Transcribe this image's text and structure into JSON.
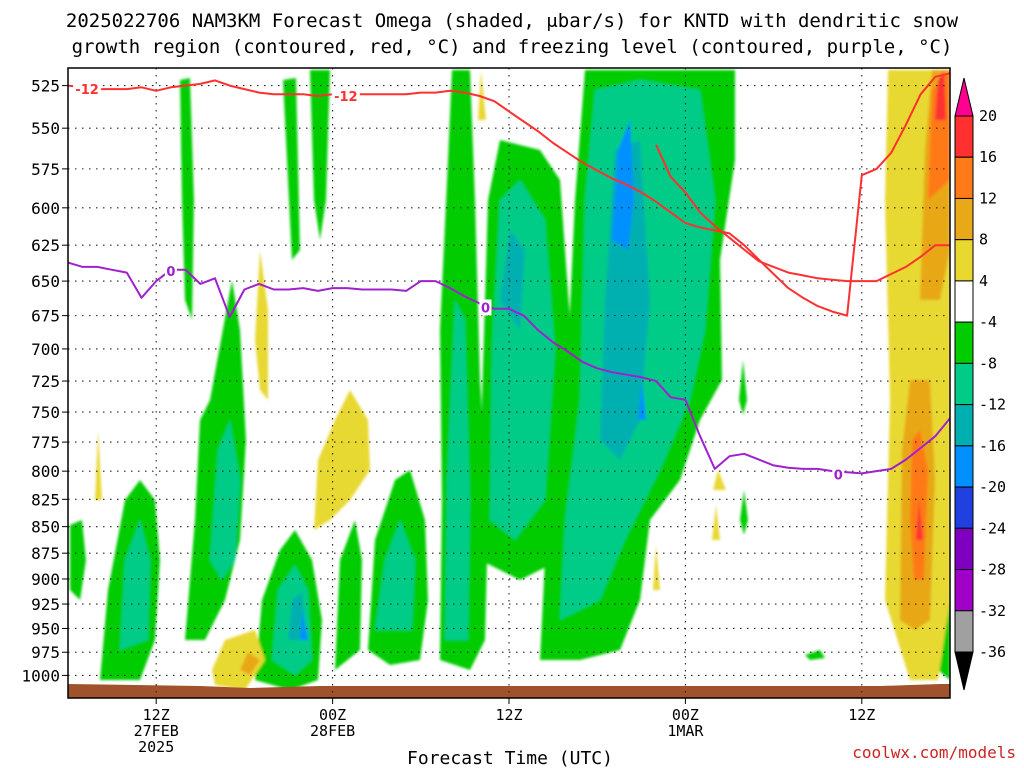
{
  "title_line1": "2025022706 NAM3KM Forecast Omega (shaded, μbar/s) for KNTD with dendritic snow",
  "title_line2": "growth region (contoured, red, °C) and freezing level (contoured, purple, °C)",
  "credit": "coolwx.com/models",
  "chart_data": {
    "type": "heatmap",
    "title": "2025022706 NAM3KM Forecast Omega (shaded, μbar/s) for KNTD with dendritic snow growth region (contoured, red, °C) and freezing level (contoured, purple, °C)",
    "xlabel": "Forecast Time (UTC)",
    "ylabel": "",
    "x_unit": "forecast hour from 2025-02-27 06Z",
    "xlim": [
      0,
      60
    ],
    "ylim": [
      1025,
      515
    ],
    "y_scale": "log-pressure",
    "grid": true,
    "y_ticks": [
      525,
      550,
      575,
      600,
      625,
      650,
      675,
      700,
      725,
      750,
      775,
      800,
      825,
      850,
      875,
      900,
      925,
      950,
      975,
      1000
    ],
    "x_ticks": [
      {
        "hour": 6,
        "line1": "12Z",
        "line2": "27FEB",
        "line3": "2025"
      },
      {
        "hour": 18,
        "line1": "00Z",
        "line2": "28FEB",
        "line3": ""
      },
      {
        "hour": 30,
        "line1": "12Z",
        "line2": "",
        "line3": ""
      },
      {
        "hour": 42,
        "line1": "00Z",
        "line2": "1MAR",
        "line3": ""
      },
      {
        "hour": 54,
        "line1": "12Z",
        "line2": "",
        "line3": ""
      }
    ],
    "colorbar": {
      "levels": [
        20,
        16,
        12,
        8,
        4,
        -4,
        -8,
        -12,
        -16,
        -20,
        -24,
        -28,
        -32,
        -36
      ],
      "colors": [
        "#ff0090",
        "#ff3030",
        "#ff7a18",
        "#e8a818",
        "#e8d830",
        "#ffffff",
        "#00cc00",
        "#00cc88",
        "#00b0b0",
        "#0090ff",
        "#2040e0",
        "#8000c0",
        "#a000c8",
        "#a0a0a0",
        "#000000"
      ]
    },
    "series": [
      {
        "name": "-12",
        "color": "#ff3030",
        "label_points": [
          [
            1.3,
            527
          ],
          [
            18.9,
            531
          ]
        ],
        "x": [
          0,
          1,
          2,
          3,
          4,
          5,
          6,
          7,
          8,
          9,
          10,
          11,
          12,
          13,
          14,
          15,
          16,
          17,
          18,
          19,
          20,
          21,
          22,
          23,
          24,
          25,
          26,
          27,
          28,
          29,
          30,
          31,
          32,
          33,
          34,
          35,
          36,
          37,
          38,
          39,
          40,
          41,
          42,
          43,
          44,
          45,
          46,
          47,
          48,
          49,
          50,
          51,
          52,
          53,
          54,
          55,
          56,
          57,
          58,
          59,
          60
        ],
        "y": [
          525,
          526,
          527,
          527,
          527,
          526,
          528,
          526,
          525,
          524,
          522,
          525,
          527,
          529,
          530,
          530,
          530,
          531,
          530,
          530,
          530,
          530,
          530,
          530,
          529,
          529,
          528,
          529,
          531,
          534,
          540,
          546,
          552,
          559,
          565,
          571,
          576,
          581,
          585,
          590,
          596,
          603,
          610,
          613,
          615,
          617,
          625,
          635,
          645,
          655,
          662,
          668,
          672,
          675,
          579,
          575,
          565,
          548,
          530,
          520,
          518
        ]
      },
      {
        "name": "-12",
        "color": "#ff3030",
        "x": [
          40,
          41,
          42,
          43,
          44,
          45,
          46,
          47,
          48,
          49,
          50,
          51,
          52,
          53,
          54,
          55,
          56,
          57,
          58,
          59,
          60
        ],
        "y": [
          560,
          580,
          590,
          603,
          612,
          620,
          628,
          636,
          640,
          644,
          646,
          648,
          649,
          650,
          650,
          650,
          645,
          640,
          633,
          625,
          625
        ]
      },
      {
        "name": "0",
        "color": "#a020d0",
        "label_points": [
          [
            7,
            643
          ],
          [
            28.4,
            669
          ],
          [
            52.4,
            803
          ]
        ],
        "x": [
          0,
          1,
          2,
          3,
          4,
          5,
          6,
          7,
          8,
          9,
          10,
          11,
          12,
          13,
          14,
          15,
          16,
          17,
          18,
          19,
          20,
          21,
          22,
          23,
          24,
          25,
          26,
          27,
          28,
          29,
          30,
          31,
          32,
          33,
          34,
          35,
          36,
          37,
          38,
          39,
          40,
          41,
          42,
          43,
          44,
          45,
          46,
          47,
          48,
          49,
          50,
          51,
          52,
          53,
          54,
          55,
          56,
          57,
          58,
          59,
          60
        ],
        "y": [
          637,
          640,
          640,
          642,
          644,
          662,
          650,
          642,
          642,
          652,
          648,
          676,
          656,
          652,
          656,
          656,
          655,
          657,
          655,
          655,
          656,
          656,
          656,
          657,
          650,
          650,
          655,
          661,
          666,
          670,
          670,
          675,
          686,
          695,
          702,
          710,
          715,
          718,
          720,
          722,
          725,
          738,
          740,
          770,
          798,
          787,
          785,
          790,
          795,
          797,
          798,
          798,
          800,
          801,
          802,
          800,
          798,
          790,
          780,
          770,
          755
        ]
      }
    ],
    "annotations": [
      "-12",
      "-12",
      "0",
      "0",
      "0"
    ]
  }
}
